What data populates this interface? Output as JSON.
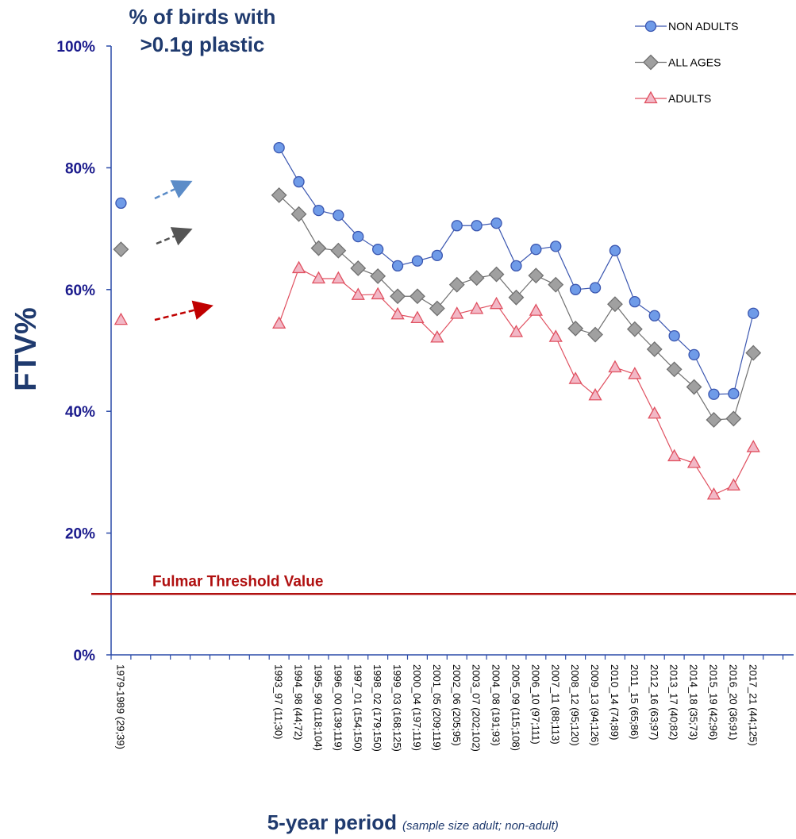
{
  "chart_data": {
    "type": "line",
    "title": [
      "% of birds with",
      ">0.1g plastic"
    ],
    "y_label": "FTV%",
    "x_label": "5-year period",
    "x_label_note": "(sample size adult; non-adult)",
    "threshold": {
      "value": 10,
      "label": "Fulmar Threshold Value",
      "color": "#b01010"
    },
    "categories": [
      "1979-1989 (29;39)",
      null,
      null,
      null,
      null,
      null,
      null,
      null,
      "1993_97 (11;30)",
      "1994_98 (44;72)",
      "1995_99 (118;104)",
      "1996_00 (139;119)",
      "1997_01 (154;150)",
      "1998_02 (179;150)",
      "1999_03 (168;125)",
      "2000_04 (197;119)",
      "2001_05 (209;119)",
      "2002_06 (205;95)",
      "2003_07 (202;102)",
      "2004_08 (191;93)",
      "2005_09 (115;108)",
      "2006_10 (97;111)",
      "2007_11 (88;113)",
      "2008_12 (95;120)",
      "2009_13 (94;126)",
      "2010_14 (74;89)",
      "2011_15 (65;86)",
      "2012_16 (63;97)",
      "2013_17 (40;82)",
      "2014_18 (35;73)",
      "2015_19 (42;96)",
      "2016_20 (36;91)",
      "2017_21 (44;125)",
      null
    ],
    "series": [
      {
        "name": "NON ADULTS",
        "color": "#3a56b0",
        "marker": "circle",
        "marker_fill": "#6f9be8",
        "values": [
          74.2,
          null,
          null,
          null,
          null,
          null,
          null,
          null,
          83.3,
          77.7,
          73.0,
          72.2,
          68.7,
          66.6,
          63.9,
          64.7,
          65.6,
          70.5,
          70.5,
          70.9,
          63.9,
          66.6,
          67.1,
          60.0,
          60.3,
          66.4,
          58.0,
          55.7,
          52.4,
          49.3,
          42.8,
          42.9,
          56.1,
          null
        ]
      },
      {
        "name": "ALL AGES",
        "color": "#707070",
        "marker": "diamond",
        "marker_fill": "#a0a0a0",
        "values": [
          66.6,
          null,
          null,
          null,
          null,
          null,
          null,
          null,
          75.5,
          72.4,
          66.8,
          66.4,
          63.5,
          62.2,
          58.9,
          58.9,
          56.9,
          60.8,
          61.9,
          62.5,
          58.7,
          62.3,
          60.8,
          53.6,
          52.6,
          57.6,
          53.5,
          50.2,
          46.9,
          44.0,
          38.6,
          38.8,
          49.6,
          null
        ]
      },
      {
        "name": "ADULTS",
        "color": "#e05060",
        "marker": "triangle",
        "marker_fill": "#f2b8c6",
        "values": [
          55.0,
          null,
          null,
          null,
          null,
          null,
          null,
          null,
          54.4,
          63.5,
          61.8,
          61.8,
          59.1,
          59.2,
          55.9,
          55.3,
          52.1,
          56.0,
          56.8,
          57.6,
          53.0,
          56.5,
          52.2,
          45.3,
          42.6,
          47.2,
          46.1,
          39.6,
          32.6,
          31.5,
          26.3,
          27.8,
          34.1,
          null
        ]
      }
    ],
    "ylim": [
      0,
      100
    ],
    "yticks": [
      {
        "value": 0,
        "label": "0%"
      },
      {
        "value": 20,
        "label": "20%"
      },
      {
        "value": 40,
        "label": "40%"
      },
      {
        "value": 60,
        "label": "60%"
      },
      {
        "value": 80,
        "label": "80%"
      },
      {
        "value": 100,
        "label": "100%"
      }
    ],
    "legend": "top-right"
  }
}
